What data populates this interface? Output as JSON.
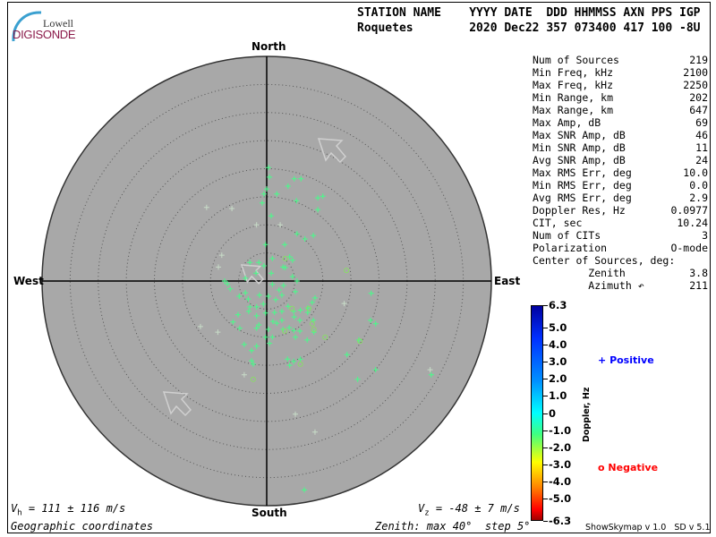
{
  "logo": {
    "line1": "Lowell",
    "line2": "DIGISONDE"
  },
  "header": {
    "labels": "STATION NAME    YYYY DATE  DDD HHMMSS AXN PPS IGP",
    "values": "Roquetes        2020 Dec22 357 073400 417 100 -8U"
  },
  "directions": {
    "north": "North",
    "south": "South",
    "east": "East",
    "west": "West"
  },
  "stats": [
    {
      "label": "Num of Sources",
      "value": "219"
    },
    {
      "label": "Min Freq, kHz",
      "value": "2100"
    },
    {
      "label": "Max Freq, kHz",
      "value": "2250"
    },
    {
      "label": "Min Range, km",
      "value": "202"
    },
    {
      "label": "Max Range, km",
      "value": "647"
    },
    {
      "label": "Max Amp, dB",
      "value": "69"
    },
    {
      "label": "Max SNR Amp, dB",
      "value": "46"
    },
    {
      "label": "Min SNR Amp, dB",
      "value": "11"
    },
    {
      "label": "Avg SNR Amp, dB",
      "value": "24"
    },
    {
      "label": "Max RMS Err, deg",
      "value": "10.0"
    },
    {
      "label": "Min RMS Err, deg",
      "value": "0.0"
    },
    {
      "label": "Avg RMS Err, deg",
      "value": "2.9"
    },
    {
      "label": "Doppler Res, Hz",
      "value": "0.0977"
    },
    {
      "label": "CIT, sec",
      "value": "10.24"
    },
    {
      "label": "Num of CITs",
      "value": "3"
    },
    {
      "label": "Polarization",
      "value": "O-mode"
    },
    {
      "label": "Center of Sources, deg:",
      "value": ""
    },
    {
      "label": "         Zenith",
      "value": "3.8"
    },
    {
      "label": "         Azimuth ↶",
      "value": "211"
    }
  ],
  "colorbar": {
    "title": "Doppler, Hz",
    "ticks": [
      "6.3",
      "5.0",
      "4.0",
      "3.0",
      "2.0",
      "1.0",
      "0",
      "-1.0",
      "-2.0",
      "-3.0",
      "-4.0",
      "-5.0",
      "-6.3"
    ],
    "range": [
      -6.3,
      6.3
    ]
  },
  "legend": {
    "positive": {
      "symbol": "+",
      "label": "Positive",
      "color": "#0000ff"
    },
    "negative": {
      "symbol": "o",
      "label": "Negative",
      "color": "#ff0000"
    }
  },
  "footer": {
    "vh": "V",
    "vh_sub": "h",
    "vh_value": " = 111 ± 116 m/s",
    "vz": "V",
    "vz_sub": "z",
    "vz_value": " = -48 ± 7 m/s",
    "coords": "Geographic coordinates",
    "zenith": "Zenith: max 40°  step 5°",
    "version": "ShowSkymap v 1.0   SD v 5.1"
  },
  "chart_data": {
    "type": "scatter",
    "projection": "polar sky map, east/north offsets in zenith degrees",
    "zenith_max": 40,
    "zenith_step": 5,
    "colors": {
      "disk": "#a8a8a8",
      "green": "#44ff88",
      "pale": "#c8dcc8",
      "circle": "#88dd66"
    },
    "velocity_arrows_direction": "north-west",
    "positive": [
      [
        0.3,
        20.2
      ],
      [
        0.5,
        18.5
      ],
      [
        4.9,
        18.2
      ],
      [
        6.1,
        18.2
      ],
      [
        3.8,
        16.9
      ],
      [
        0,
        16.4
      ],
      [
        -0.5,
        15.5
      ],
      [
        1.8,
        15.5
      ],
      [
        9.1,
        14.8
      ],
      [
        5.3,
        14.3
      ],
      [
        -6.2,
        12.9,
        "p"
      ],
      [
        -0.8,
        13.9
      ],
      [
        9.1,
        12.7
      ],
      [
        0.8,
        11.6
      ],
      [
        -1.8,
        10.0,
        "p"
      ],
      [
        2.4,
        10.0,
        "p"
      ],
      [
        5.4,
        8.4
      ],
      [
        8.3,
        8.1
      ],
      [
        6.8,
        7.5
      ],
      [
        -0.2,
        6.5
      ],
      [
        3.2,
        6.5
      ],
      [
        -8.0,
        4.6,
        "p"
      ],
      [
        1.0,
        4.0
      ],
      [
        4.1,
        4.3
      ],
      [
        4.6,
        3.7
      ],
      [
        -1.4,
        3.3
      ],
      [
        -3.0,
        3.3
      ],
      [
        -8.6,
        2.5,
        "p"
      ],
      [
        -0.5,
        2.7
      ],
      [
        2.9,
        2.5
      ],
      [
        3.3,
        2.4
      ],
      [
        0.8,
        1.4
      ],
      [
        -1.9,
        1.4
      ],
      [
        4.6,
        0.8
      ],
      [
        5.4,
        0
      ],
      [
        -3.8,
        0.5
      ],
      [
        -7.5,
        0
      ],
      [
        -7.0,
        -0.5
      ],
      [
        -6.5,
        -1.4
      ],
      [
        1.0,
        -0.6
      ],
      [
        3.0,
        -0.8
      ],
      [
        2.2,
        -1.6
      ],
      [
        5.1,
        -1.9
      ],
      [
        8.6,
        -3.0
      ],
      [
        8.1,
        -3.8
      ],
      [
        13.8,
        -4.0,
        "p"
      ],
      [
        18.6,
        -2.2
      ],
      [
        -3.8,
        -2.1
      ],
      [
        -4.9,
        -2.7
      ],
      [
        -3.3,
        -3.2
      ],
      [
        -1.3,
        -2.5
      ],
      [
        0.3,
        -2.7
      ],
      [
        1.6,
        -3.3
      ],
      [
        2.7,
        -2.5
      ],
      [
        -0.6,
        -4.1
      ],
      [
        -1.8,
        -4.6
      ],
      [
        -3.0,
        -4.6
      ],
      [
        -3.2,
        -5.4
      ],
      [
        -0.2,
        -5.7
      ],
      [
        1.4,
        -5.6
      ],
      [
        2.7,
        -5.4
      ],
      [
        3.8,
        -4.5
      ],
      [
        4.8,
        -5.4
      ],
      [
        6.0,
        -5.2
      ],
      [
        7.3,
        -4.8
      ],
      [
        7.3,
        -5.6
      ],
      [
        -5.1,
        -6.0
      ],
      [
        -1.8,
        -6.2
      ],
      [
        4.9,
        -6.4
      ],
      [
        5.9,
        -7.0
      ],
      [
        8.3,
        -7.0
      ],
      [
        -6.0,
        -7.3
      ],
      [
        1.1,
        -7.2
      ],
      [
        1.8,
        -7.5
      ],
      [
        2.7,
        -7.0
      ],
      [
        -1.4,
        -7.8
      ],
      [
        -1.8,
        -8.4
      ],
      [
        -4.8,
        -8.4
      ],
      [
        -11.8,
        -8.1,
        "p"
      ],
      [
        -8.7,
        -9.1,
        "p"
      ],
      [
        0.3,
        -8.6
      ],
      [
        2.9,
        -8.6
      ],
      [
        4.0,
        -8.3
      ],
      [
        4.8,
        -8.8
      ],
      [
        5.9,
        -8.9
      ],
      [
        8.4,
        -9.1
      ],
      [
        -0.2,
        -10.0
      ],
      [
        1.0,
        -10.0
      ],
      [
        5.1,
        -10.0
      ],
      [
        7.2,
        -10.5
      ],
      [
        18.5,
        -7.0
      ],
      [
        -4.0,
        -11.3
      ],
      [
        -1.8,
        -11.6
      ],
      [
        0.5,
        -11.1
      ],
      [
        -2.7,
        -12.4
      ],
      [
        14.3,
        -13.1
      ],
      [
        3.7,
        -13.9
      ],
      [
        6.0,
        -13.9
      ],
      [
        -2.7,
        -14.2
      ],
      [
        4.8,
        -14.3
      ],
      [
        -2.4,
        -14.8
      ],
      [
        4.1,
        -15.0
      ],
      [
        -4.0,
        -16.7,
        "p"
      ],
      [
        16.2,
        -17.5
      ],
      [
        19.4,
        -15.8
      ],
      [
        29.1,
        -15.8,
        "p"
      ],
      [
        29.3,
        -16.7
      ],
      [
        5.1,
        -23.7,
        "p"
      ],
      [
        8.6,
        -26.9,
        "p"
      ],
      [
        6.7,
        -37.2
      ],
      [
        10.0,
        15.1
      ],
      [
        16.4,
        -10.5
      ],
      [
        19.4,
        -7.6
      ],
      [
        -10.7,
        13.1,
        "p"
      ]
    ],
    "negative": [
      [
        3.3,
        4.0
      ],
      [
        14.2,
        1.9
      ],
      [
        4.5,
        -4.9
      ],
      [
        7.5,
        -4.9
      ],
      [
        8.1,
        -7.6
      ],
      [
        8.4,
        -8.6
      ],
      [
        3.2,
        -8.9
      ],
      [
        10.4,
        -10.0
      ],
      [
        16.6,
        -10.7
      ],
      [
        6.0,
        -14.8
      ],
      [
        -2.4,
        -17.5
      ]
    ]
  }
}
